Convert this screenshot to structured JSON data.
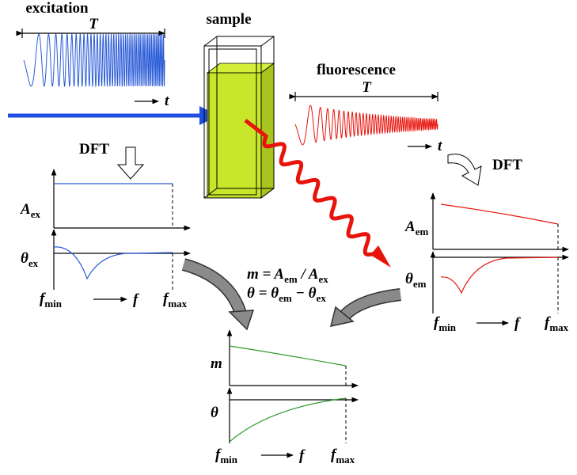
{
  "excitation": {
    "label": "excitation",
    "period": "T",
    "time": "t"
  },
  "sample": {
    "label": "sample"
  },
  "fluorescence": {
    "label": "fluorescence",
    "period": "T",
    "time": "t"
  },
  "dft": [
    "DFT",
    "DFT"
  ],
  "excitation_spectrum": {
    "amplitude": [
      "A",
      "ex"
    ],
    "phase": [
      "θ",
      "ex"
    ],
    "f_min": [
      "f",
      "min"
    ],
    "f_axis": "f",
    "f_max": [
      "f",
      "max"
    ]
  },
  "emission_spectrum": {
    "amplitude": [
      "A",
      "em"
    ],
    "phase": [
      "θ",
      "em"
    ],
    "f_min": [
      "f",
      "min"
    ],
    "f_axis": "f",
    "f_max": [
      "f",
      "max"
    ]
  },
  "equations": [
    [
      "m = A",
      "em",
      " / A",
      "ex"
    ],
    [
      "θ = θ",
      "em",
      " − θ",
      "ex"
    ]
  ],
  "result_spectrum": {
    "magnitude": "m",
    "phase": "θ",
    "f_min": [
      "f",
      "min"
    ],
    "f_axis": "f",
    "f_max": [
      "f",
      "max"
    ]
  }
}
